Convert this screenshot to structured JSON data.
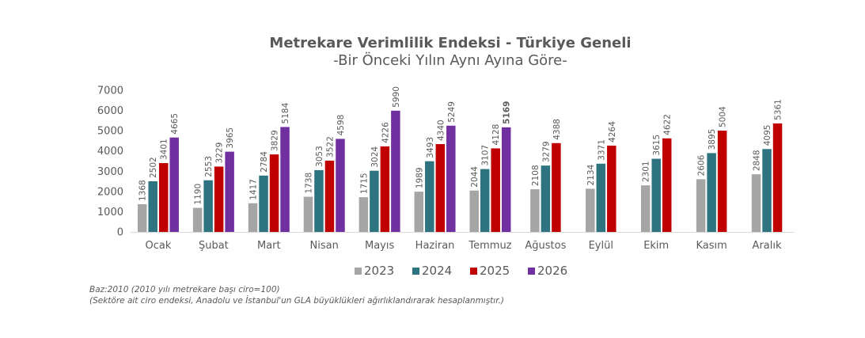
{
  "chart_data": {
    "type": "bar",
    "title": "Metrekare Verimlilik Endeksi - Türkiye Geneli",
    "subtitle": "-Bir Önceki Yılın Aynı Ayına Göre-",
    "categories": [
      "Ocak",
      "Şubat",
      "Mart",
      "Nisan",
      "Mayıs",
      "Haziran",
      "Temmuz",
      "Ağustos",
      "Eylül",
      "Ekim",
      "Kasım",
      "Aralık"
    ],
    "series": [
      {
        "name": "2023",
        "color": "#a5a5a5",
        "values": [
          1368,
          1190,
          1417,
          1738,
          1715,
          1989,
          2044,
          2108,
          2134,
          2301,
          2606,
          2848
        ]
      },
      {
        "name": "2024",
        "color": "#2e7480",
        "values": [
          2502,
          2553,
          2784,
          3053,
          3024,
          3493,
          3107,
          3279,
          3371,
          3615,
          3895,
          4095
        ]
      },
      {
        "name": "2025",
        "color": "#c00000",
        "values": [
          3401,
          3229,
          3829,
          3522,
          4226,
          4340,
          4128,
          4388,
          4264,
          4622,
          5004,
          5361
        ]
      },
      {
        "name": "2026",
        "color": "#7030a0",
        "values": [
          4665,
          3965,
          5184,
          4598,
          5990,
          5249,
          5169,
          null,
          null,
          null,
          null,
          null
        ]
      }
    ],
    "bold_labels": [
      {
        "series": "2026",
        "category": "Temmuz"
      }
    ],
    "ylim": [
      0,
      7000
    ],
    "yticks": [
      0,
      1000,
      2000,
      3000,
      4000,
      5000,
      6000,
      7000
    ],
    "grid": false,
    "legend_position": "bottom",
    "notes": [
      "Baz:2010 (2010 yılı metrekare başı ciro=100)",
      "(Sektöre ait ciro endeksi, Anadolu ve İstanbul'un GLA büyüklükleri ağırlıklandırarak hesaplanmıştır.)"
    ]
  }
}
